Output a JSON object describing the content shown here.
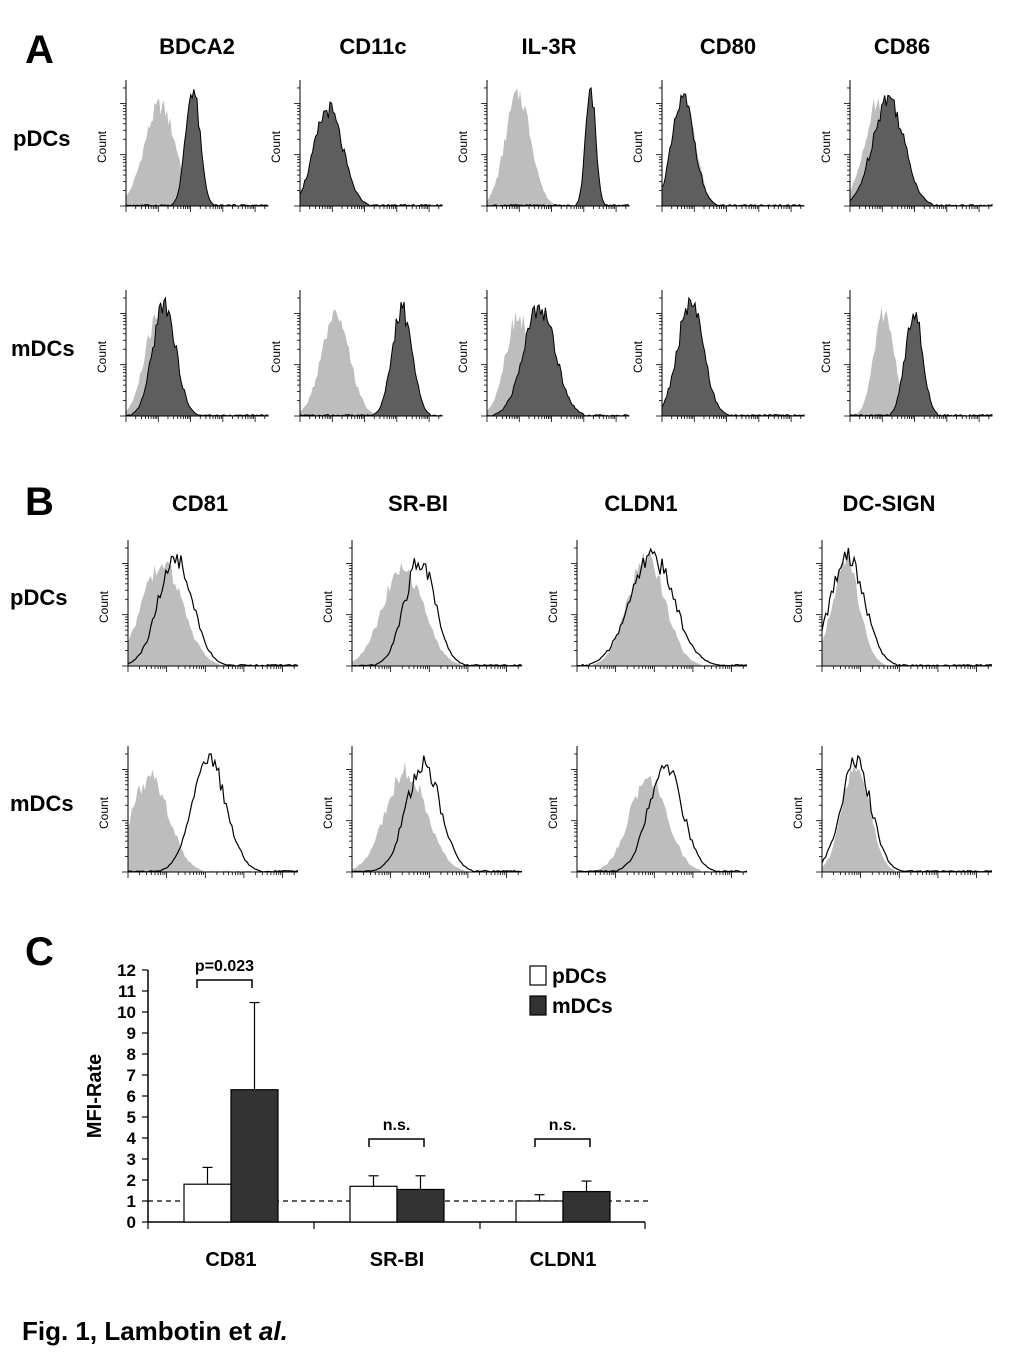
{
  "panel_a": {
    "letter": "A",
    "columns": [
      "BDCA2",
      "CD11c",
      "IL-3R",
      "CD80",
      "CD86"
    ],
    "rows": [
      "pDCs",
      "mDCs"
    ],
    "axis_label": "Count",
    "histograms": [
      [
        {
          "iso": [
            0.24,
            0.11,
            0.85
          ],
          "mk": [
            0.47,
            0.05,
            1.0
          ]
        },
        {
          "iso": [
            0.2,
            0.1,
            0.7
          ],
          "mk": [
            0.2,
            0.1,
            0.82
          ]
        },
        {
          "iso": [
            0.22,
            0.09,
            0.95
          ],
          "mk": [
            0.73,
            0.035,
            1.0
          ]
        },
        {
          "iso": [
            0.16,
            0.08,
            0.85
          ],
          "mk": [
            0.15,
            0.08,
            0.9
          ]
        },
        {
          "iso": [
            0.2,
            0.1,
            0.88
          ],
          "mk": [
            0.27,
            0.11,
            0.92
          ]
        }
      ],
      [
        {
          "iso": [
            0.22,
            0.09,
            0.82
          ],
          "mk": [
            0.27,
            0.08,
            0.96
          ]
        },
        {
          "iso": [
            0.25,
            0.1,
            0.83
          ],
          "mk": [
            0.72,
            0.07,
            0.9
          ]
        },
        {
          "iso": [
            0.22,
            0.09,
            0.85
          ],
          "mk": [
            0.37,
            0.11,
            0.93
          ]
        },
        {
          "iso": [
            0.2,
            0.09,
            0.8
          ],
          "mk": [
            0.2,
            0.09,
            0.96
          ]
        },
        {
          "iso": [
            0.24,
            0.07,
            0.88
          ],
          "mk": [
            0.45,
            0.06,
            0.9
          ]
        }
      ]
    ]
  },
  "panel_b": {
    "letter": "B",
    "columns": [
      "CD81",
      "SR-BI",
      "CLDN1",
      "DC-SIGN"
    ],
    "rows": [
      "pDCs",
      "mDCs"
    ],
    "axis_label": "Count",
    "histograms": [
      [
        {
          "iso": [
            0.2,
            0.12,
            0.86
          ],
          "mk": [
            0.28,
            0.1,
            0.92
          ]
        },
        {
          "iso": [
            0.3,
            0.12,
            0.82
          ],
          "mk": [
            0.4,
            0.09,
            0.9
          ]
        },
        {
          "iso": [
            0.41,
            0.11,
            0.9
          ],
          "mk": [
            0.44,
            0.13,
            0.92
          ]
        },
        {
          "iso": [
            0.14,
            0.08,
            0.88
          ],
          "mk": [
            0.15,
            0.1,
            0.92
          ]
        }
      ],
      [
        {
          "iso": [
            0.13,
            0.11,
            0.8
          ],
          "mk": [
            0.48,
            0.1,
            0.93
          ]
        },
        {
          "iso": [
            0.32,
            0.12,
            0.86
          ],
          "mk": [
            0.42,
            0.1,
            0.92
          ]
        },
        {
          "iso": [
            0.42,
            0.11,
            0.8
          ],
          "mk": [
            0.52,
            0.1,
            0.88
          ]
        },
        {
          "iso": [
            0.2,
            0.08,
            0.9
          ],
          "mk": [
            0.2,
            0.09,
            0.92
          ]
        }
      ]
    ]
  },
  "panel_c": {
    "letter": "C",
    "sig_labels": [
      "p=0.023",
      "n.s.",
      "n.s."
    ]
  },
  "chart_data": {
    "type": "bar",
    "categories": [
      "CD81",
      "SR-BI",
      "CLDN1"
    ],
    "series": [
      {
        "name": "pDCs",
        "values": [
          1.8,
          1.7,
          1.0
        ],
        "errors": [
          0.8,
          0.5,
          0.3
        ],
        "color": "#ffffff"
      },
      {
        "name": "mDCs",
        "values": [
          6.3,
          1.55,
          1.45
        ],
        "errors": [
          4.15,
          0.65,
          0.5
        ],
        "color": "#333333"
      }
    ],
    "ylabel": "MFI-Rate",
    "ylim": [
      0,
      12
    ],
    "yticks": [
      "0",
      "1",
      "2",
      "3",
      "4",
      "5",
      "6",
      "7",
      "8",
      "9",
      "10",
      "11",
      "12"
    ],
    "reference_line": 1,
    "legend_position": "top-right",
    "grid": false
  },
  "caption": {
    "prefix": "Fig. 1, Lambotin et ",
    "italic": "al."
  },
  "colors": {
    "isotype_fill": "#bdbdbd",
    "marker_fill_a": "#5e5e5e",
    "bar_dark": "#333333",
    "axis": "#000000"
  }
}
